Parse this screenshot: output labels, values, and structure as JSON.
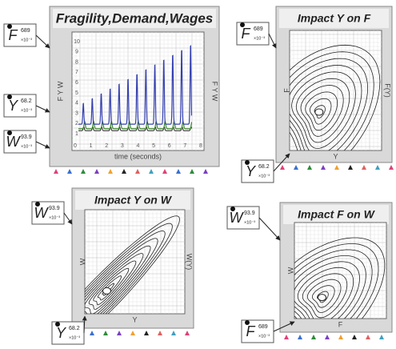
{
  "panels": [
    {
      "title": "Fragility,Demand,Wages",
      "x_label": "time (seconds)",
      "y_label": "F Y W",
      "y2_label": "F Y W",
      "yticks": [
        "10",
        "9",
        "8",
        "7",
        "6",
        "5",
        "4",
        "3",
        "2",
        "1"
      ],
      "xticks": [
        "0",
        "1",
        "2",
        "3",
        "4",
        "5",
        "6",
        "7",
        "8"
      ]
    },
    {
      "title": "Impact Y on F",
      "x_label": "Y",
      "y_label": "F",
      "y2_label": "F(Y)"
    },
    {
      "title": "Impact Y on W",
      "x_label": "Y",
      "y_label": "W",
      "y2_label": "W(Y)"
    },
    {
      "title": "Impact F on W",
      "x_label": "F",
      "y_label": "W"
    }
  ],
  "gauges": [
    {
      "symbol": "F",
      "value": "689",
      "unit": "×10⁻³"
    },
    {
      "symbol": "Y",
      "value": "68.2",
      "unit": "×10⁻³"
    },
    {
      "symbol": "W",
      "value": "93.9",
      "unit": "×10⁻³"
    },
    {
      "symbol": "F",
      "value": "689",
      "unit": "×10⁻³"
    },
    {
      "symbol": "Y",
      "value": "68.2",
      "unit": "×10⁻³"
    },
    {
      "symbol": "W",
      "value": "93.9",
      "unit": "×10⁻³"
    },
    {
      "symbol": "Y",
      "value": "68.2",
      "unit": "×10⁻³"
    },
    {
      "symbol": "W",
      "value": "93.9",
      "unit": "×10⁻³"
    },
    {
      "symbol": "F",
      "value": "689",
      "unit": "×10⁻³"
    }
  ]
}
